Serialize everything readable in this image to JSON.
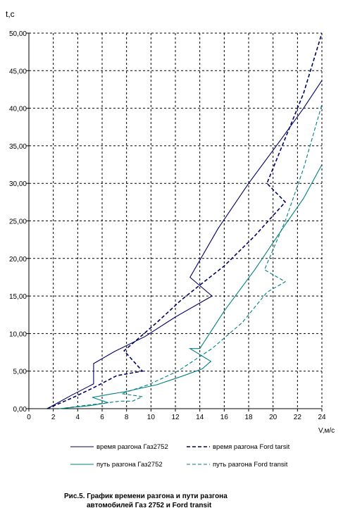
{
  "chart_data": {
    "type": "line",
    "title": "",
    "ylabel": "t,c",
    "xlabel": "V,м/с",
    "xlim": [
      0,
      24
    ],
    "ylim": [
      0,
      50
    ],
    "x_ticks": [
      "0",
      "2",
      "4",
      "6",
      "8",
      "10",
      "12",
      "14",
      "16",
      "18",
      "20",
      "22",
      "24"
    ],
    "y_ticks": [
      "0,00",
      "5,00",
      "10,00",
      "15,00",
      "20,00",
      "25,00",
      "30,00",
      "35,00",
      "40,00",
      "45,00",
      "50,00"
    ],
    "grid": true,
    "legend_position": "bottom",
    "caption": [
      "Рис.5. График времени разгона и пути разгона",
      "автомобилей Газ 2752 и Ford transit"
    ],
    "series": [
      {
        "name": "время разгона Газ2752",
        "color": "#000066",
        "dash": "solid",
        "points": [
          [
            1.5,
            0.0
          ],
          [
            3.5,
            1.8
          ],
          [
            5.3,
            3.3
          ],
          [
            5.3,
            6.0
          ],
          [
            7.0,
            7.6
          ],
          [
            9.5,
            9.6
          ],
          [
            12.0,
            12.2
          ],
          [
            15.0,
            15.0
          ],
          [
            13.2,
            17.5
          ],
          [
            15.5,
            24.0
          ],
          [
            18.0,
            30.0
          ],
          [
            20.5,
            35.5
          ],
          [
            22.5,
            40.0
          ],
          [
            24.0,
            43.7
          ]
        ]
      },
      {
        "name": "время разгона Ford tarsit",
        "color": "#000066",
        "dash": "dashed",
        "points": [
          [
            1.5,
            0.0
          ],
          [
            3.5,
            1.4
          ],
          [
            5.3,
            2.8
          ],
          [
            7.2,
            4.4
          ],
          [
            9.3,
            5.0
          ],
          [
            7.8,
            7.7
          ],
          [
            10.5,
            11.5
          ],
          [
            12.5,
            14.5
          ],
          [
            14.2,
            16.7
          ],
          [
            16.0,
            19.0
          ],
          [
            18.5,
            23.0
          ],
          [
            21.0,
            27.5
          ],
          [
            19.5,
            30.0
          ],
          [
            21.0,
            36.0
          ],
          [
            22.5,
            42.0
          ],
          [
            24.0,
            50.0
          ]
        ]
      },
      {
        "name": "путь разгона Газ2752",
        "color": "#008080",
        "dash": "solid",
        "points": [
          [
            2.5,
            0.0
          ],
          [
            5.0,
            0.4
          ],
          [
            6.5,
            0.8
          ],
          [
            5.2,
            1.5
          ],
          [
            6.2,
            1.8
          ],
          [
            8.0,
            2.3
          ],
          [
            10.5,
            3.2
          ],
          [
            12.5,
            4.3
          ],
          [
            14.2,
            5.3
          ],
          [
            14.9,
            6.3
          ],
          [
            13.2,
            8.0
          ],
          [
            14.0,
            8.0
          ],
          [
            16.0,
            13.0
          ],
          [
            18.5,
            18.5
          ],
          [
            21.0,
            24.5
          ],
          [
            22.5,
            28.0
          ],
          [
            24.0,
            32.5
          ]
        ]
      },
      {
        "name": "путь разгона Ford transit",
        "color": "#008080",
        "dash": "dashed",
        "points": [
          [
            2.5,
            0.0
          ],
          [
            4.5,
            0.4
          ],
          [
            6.0,
            0.7
          ],
          [
            7.5,
            1.0
          ],
          [
            8.5,
            1.0
          ],
          [
            9.3,
            1.6
          ],
          [
            7.6,
            2.0
          ],
          [
            9.8,
            3.2
          ],
          [
            12.2,
            5.0
          ],
          [
            15.0,
            8.0
          ],
          [
            17.5,
            11.5
          ],
          [
            19.5,
            15.5
          ],
          [
            21.0,
            16.9
          ],
          [
            19.3,
            18.5
          ],
          [
            21.0,
            25.0
          ],
          [
            22.5,
            32.0
          ],
          [
            24.0,
            40.5
          ]
        ]
      }
    ]
  }
}
